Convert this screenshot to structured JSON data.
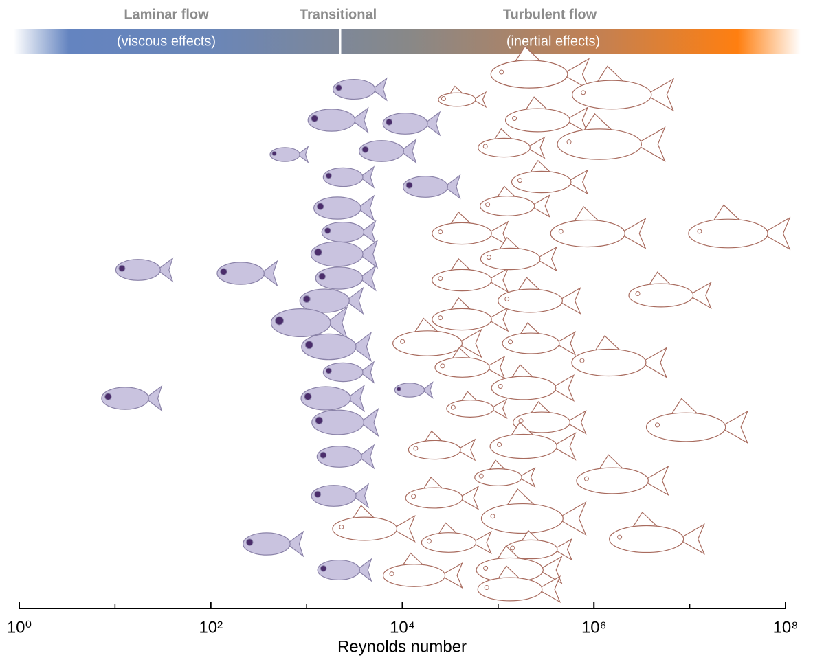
{
  "header": {
    "laminar": "Laminar flow",
    "transitional": "Transitional",
    "turbulent": "Turbulent flow",
    "viscous": "(viscous effects)",
    "inertial": "(inertial effects)"
  },
  "chart_data": {
    "type": "scatter",
    "x_label": "Reynolds number",
    "xscale": "log",
    "xlim": [
      1,
      100000000
    ],
    "xticks": [
      {
        "value": 1,
        "label": "10⁰"
      },
      {
        "value": 100,
        "label": "10²"
      },
      {
        "value": 10000,
        "label": "10⁴"
      },
      {
        "value": 1000000,
        "label": "10⁶"
      },
      {
        "value": 100000000,
        "label": "10⁸"
      }
    ],
    "minor_xticks": [
      10,
      1000,
      100000,
      10000000
    ],
    "series": [
      {
        "color": "#c9c3df",
        "x": [
          19,
          14,
          225,
          420,
          630,
          3400,
          2000,
          2600,
          2300,
          2600,
          2300,
          2400,
          1700,
          980,
          1900,
          2600,
          1750,
          2350,
          2400,
          2100,
          2350,
          6600,
          11700,
          19000,
          12600
        ]
      },
      {
        "color": "#a86b5e",
        "x": [
          4600,
          15000,
          21000,
          40000,
          47000,
          47000,
          47000,
          47000,
          56000,
          24000,
          24000,
          34000,
          128000,
          246000,
          294000,
          318000,
          139000,
          151000,
          246000,
          246000,
          210000,
          318000,
          210000,
          110000,
          210000,
          246000,
          151000,
          151000,
          1350000,
          1800000,
          1000000,
          1660000,
          1800000,
          4100000,
          5700000,
          10700000,
          29500000
        ]
      }
    ]
  }
}
